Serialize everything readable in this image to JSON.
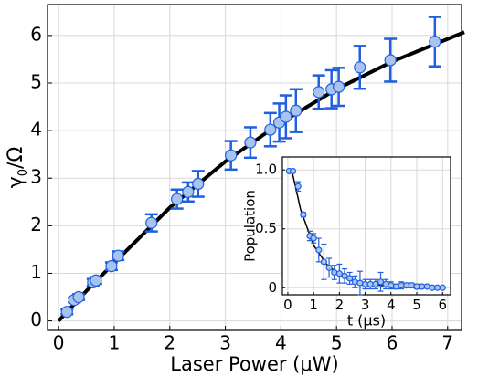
{
  "chart_data": [
    {
      "type": "scatter",
      "x_label": "Laser Power (μW)",
      "y_label_parts": [
        "γ",
        "0",
        "/Ω"
      ],
      "xlim": [
        -0.2,
        7.25
      ],
      "ylim": [
        -0.2,
        6.65
      ],
      "xticks": [
        0,
        1,
        2,
        3,
        4,
        5,
        6,
        7
      ],
      "yticks": [
        0,
        1,
        2,
        3,
        4,
        5,
        6
      ],
      "grid": true,
      "color": "#1f5fe0",
      "marker_fill": "#a9c4ec",
      "fit_color": "#000000",
      "x": [
        0.15,
        0.28,
        0.36,
        0.62,
        0.67,
        0.95,
        1.07,
        1.67,
        2.13,
        2.33,
        2.51,
        3.1,
        3.45,
        3.81,
        3.97,
        4.09,
        4.27,
        4.68,
        4.91,
        5.04,
        5.42,
        5.97,
        6.77
      ],
      "values": [
        0.19,
        0.44,
        0.5,
        0.81,
        0.85,
        1.15,
        1.37,
        2.06,
        2.56,
        2.71,
        2.88,
        3.48,
        3.75,
        4.02,
        4.17,
        4.29,
        4.42,
        4.81,
        4.87,
        4.92,
        5.33,
        5.48,
        5.87
      ],
      "errors": [
        0.05,
        0.05,
        0.06,
        0.07,
        0.07,
        0.08,
        0.09,
        0.18,
        0.2,
        0.2,
        0.27,
        0.3,
        0.32,
        0.35,
        0.4,
        0.45,
        0.45,
        0.35,
        0.4,
        0.4,
        0.45,
        0.45,
        0.52
      ],
      "fit": {
        "x": [
          0,
          0.5,
          1,
          2,
          3,
          4,
          5,
          6,
          7.3
        ],
        "values": [
          0,
          0.63,
          1.22,
          2.38,
          3.35,
          4.17,
          4.87,
          5.45,
          6.07
        ]
      }
    },
    {
      "type": "scatter",
      "x_label": "t (μs)",
      "y_label": "Population",
      "xlim": [
        -0.21,
        6.31
      ],
      "ylim": [
        -0.06,
        1.11
      ],
      "xticks": [
        0,
        1,
        2,
        3,
        4,
        5,
        6
      ],
      "yticks": [
        0,
        0.5,
        {
          "value": 1,
          "label": "1.0"
        }
      ],
      "grid": true,
      "color": "#1f5fe0",
      "marker_fill": "#a9c4ec",
      "fit_color": "#000000",
      "x": [
        0.05,
        0.2,
        0.4,
        0.6,
        0.85,
        1.0,
        1.2,
        1.4,
        1.6,
        1.8,
        2.0,
        2.2,
        2.4,
        2.6,
        2.8,
        3.0,
        3.2,
        3.4,
        3.6,
        3.8,
        4.0,
        4.2,
        4.4,
        4.6,
        4.8,
        5.0,
        5.2,
        5.4,
        5.6,
        5.8,
        6.0
      ],
      "values": [
        0.99,
        0.99,
        0.86,
        0.62,
        0.44,
        0.42,
        0.32,
        0.22,
        0.17,
        0.13,
        0.12,
        0.1,
        0.08,
        0.05,
        0.04,
        0.03,
        0.03,
        0.03,
        0.05,
        0.03,
        0.02,
        0.01,
        0.02,
        0.02,
        0.02,
        0.01,
        0.01,
        0.01,
        0,
        0,
        0
      ],
      "errors": [
        0.01,
        0.01,
        0.04,
        0.02,
        0.04,
        0.04,
        0.1,
        0.15,
        0.08,
        0.06,
        0.08,
        0.06,
        0.05,
        0.05,
        0.1,
        0.04,
        0.04,
        0.04,
        0.08,
        0.04,
        0.03,
        0.02,
        0.03,
        0.02,
        0.02,
        0.02,
        0.01,
        0.01,
        0.01,
        0.01,
        0.01
      ],
      "fit": {
        "x": [
          0.15,
          0.5,
          1,
          1.5,
          2,
          2.5,
          3,
          4,
          5,
          6
        ],
        "values": [
          1.0,
          0.66,
          0.36,
          0.2,
          0.11,
          0.06,
          0.035,
          0.01,
          0.003,
          0.001
        ]
      }
    }
  ]
}
